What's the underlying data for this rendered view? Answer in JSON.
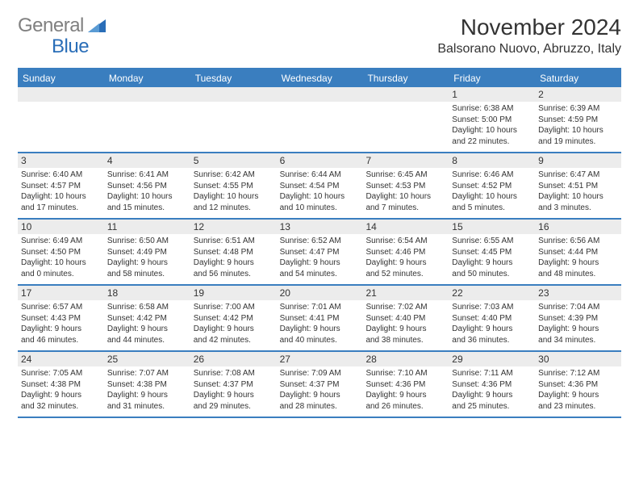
{
  "logo": {
    "part1": "General",
    "part2": "Blue",
    "color1": "#808080",
    "color2": "#2a6eb8"
  },
  "title": "November 2024",
  "location": "Balsorano Nuovo, Abruzzo, Italy",
  "colors": {
    "header_bar": "#3a7ebf",
    "header_text": "#ffffff",
    "strip": "#ececec",
    "rule": "#3a7ebf",
    "text": "#333333",
    "background": "#ffffff"
  },
  "day_names": [
    "Sunday",
    "Monday",
    "Tuesday",
    "Wednesday",
    "Thursday",
    "Friday",
    "Saturday"
  ],
  "weeks": [
    [
      null,
      null,
      null,
      null,
      null,
      {
        "num": "1",
        "sunrise": "Sunrise: 6:38 AM",
        "sunset": "Sunset: 5:00 PM",
        "day1": "Daylight: 10 hours",
        "day2": "and 22 minutes."
      },
      {
        "num": "2",
        "sunrise": "Sunrise: 6:39 AM",
        "sunset": "Sunset: 4:59 PM",
        "day1": "Daylight: 10 hours",
        "day2": "and 19 minutes."
      }
    ],
    [
      {
        "num": "3",
        "sunrise": "Sunrise: 6:40 AM",
        "sunset": "Sunset: 4:57 PM",
        "day1": "Daylight: 10 hours",
        "day2": "and 17 minutes."
      },
      {
        "num": "4",
        "sunrise": "Sunrise: 6:41 AM",
        "sunset": "Sunset: 4:56 PM",
        "day1": "Daylight: 10 hours",
        "day2": "and 15 minutes."
      },
      {
        "num": "5",
        "sunrise": "Sunrise: 6:42 AM",
        "sunset": "Sunset: 4:55 PM",
        "day1": "Daylight: 10 hours",
        "day2": "and 12 minutes."
      },
      {
        "num": "6",
        "sunrise": "Sunrise: 6:44 AM",
        "sunset": "Sunset: 4:54 PM",
        "day1": "Daylight: 10 hours",
        "day2": "and 10 minutes."
      },
      {
        "num": "7",
        "sunrise": "Sunrise: 6:45 AM",
        "sunset": "Sunset: 4:53 PM",
        "day1": "Daylight: 10 hours",
        "day2": "and 7 minutes."
      },
      {
        "num": "8",
        "sunrise": "Sunrise: 6:46 AM",
        "sunset": "Sunset: 4:52 PM",
        "day1": "Daylight: 10 hours",
        "day2": "and 5 minutes."
      },
      {
        "num": "9",
        "sunrise": "Sunrise: 6:47 AM",
        "sunset": "Sunset: 4:51 PM",
        "day1": "Daylight: 10 hours",
        "day2": "and 3 minutes."
      }
    ],
    [
      {
        "num": "10",
        "sunrise": "Sunrise: 6:49 AM",
        "sunset": "Sunset: 4:50 PM",
        "day1": "Daylight: 10 hours",
        "day2": "and 0 minutes."
      },
      {
        "num": "11",
        "sunrise": "Sunrise: 6:50 AM",
        "sunset": "Sunset: 4:49 PM",
        "day1": "Daylight: 9 hours",
        "day2": "and 58 minutes."
      },
      {
        "num": "12",
        "sunrise": "Sunrise: 6:51 AM",
        "sunset": "Sunset: 4:48 PM",
        "day1": "Daylight: 9 hours",
        "day2": "and 56 minutes."
      },
      {
        "num": "13",
        "sunrise": "Sunrise: 6:52 AM",
        "sunset": "Sunset: 4:47 PM",
        "day1": "Daylight: 9 hours",
        "day2": "and 54 minutes."
      },
      {
        "num": "14",
        "sunrise": "Sunrise: 6:54 AM",
        "sunset": "Sunset: 4:46 PM",
        "day1": "Daylight: 9 hours",
        "day2": "and 52 minutes."
      },
      {
        "num": "15",
        "sunrise": "Sunrise: 6:55 AM",
        "sunset": "Sunset: 4:45 PM",
        "day1": "Daylight: 9 hours",
        "day2": "and 50 minutes."
      },
      {
        "num": "16",
        "sunrise": "Sunrise: 6:56 AM",
        "sunset": "Sunset: 4:44 PM",
        "day1": "Daylight: 9 hours",
        "day2": "and 48 minutes."
      }
    ],
    [
      {
        "num": "17",
        "sunrise": "Sunrise: 6:57 AM",
        "sunset": "Sunset: 4:43 PM",
        "day1": "Daylight: 9 hours",
        "day2": "and 46 minutes."
      },
      {
        "num": "18",
        "sunrise": "Sunrise: 6:58 AM",
        "sunset": "Sunset: 4:42 PM",
        "day1": "Daylight: 9 hours",
        "day2": "and 44 minutes."
      },
      {
        "num": "19",
        "sunrise": "Sunrise: 7:00 AM",
        "sunset": "Sunset: 4:42 PM",
        "day1": "Daylight: 9 hours",
        "day2": "and 42 minutes."
      },
      {
        "num": "20",
        "sunrise": "Sunrise: 7:01 AM",
        "sunset": "Sunset: 4:41 PM",
        "day1": "Daylight: 9 hours",
        "day2": "and 40 minutes."
      },
      {
        "num": "21",
        "sunrise": "Sunrise: 7:02 AM",
        "sunset": "Sunset: 4:40 PM",
        "day1": "Daylight: 9 hours",
        "day2": "and 38 minutes."
      },
      {
        "num": "22",
        "sunrise": "Sunrise: 7:03 AM",
        "sunset": "Sunset: 4:40 PM",
        "day1": "Daylight: 9 hours",
        "day2": "and 36 minutes."
      },
      {
        "num": "23",
        "sunrise": "Sunrise: 7:04 AM",
        "sunset": "Sunset: 4:39 PM",
        "day1": "Daylight: 9 hours",
        "day2": "and 34 minutes."
      }
    ],
    [
      {
        "num": "24",
        "sunrise": "Sunrise: 7:05 AM",
        "sunset": "Sunset: 4:38 PM",
        "day1": "Daylight: 9 hours",
        "day2": "and 32 minutes."
      },
      {
        "num": "25",
        "sunrise": "Sunrise: 7:07 AM",
        "sunset": "Sunset: 4:38 PM",
        "day1": "Daylight: 9 hours",
        "day2": "and 31 minutes."
      },
      {
        "num": "26",
        "sunrise": "Sunrise: 7:08 AM",
        "sunset": "Sunset: 4:37 PM",
        "day1": "Daylight: 9 hours",
        "day2": "and 29 minutes."
      },
      {
        "num": "27",
        "sunrise": "Sunrise: 7:09 AM",
        "sunset": "Sunset: 4:37 PM",
        "day1": "Daylight: 9 hours",
        "day2": "and 28 minutes."
      },
      {
        "num": "28",
        "sunrise": "Sunrise: 7:10 AM",
        "sunset": "Sunset: 4:36 PM",
        "day1": "Daylight: 9 hours",
        "day2": "and 26 minutes."
      },
      {
        "num": "29",
        "sunrise": "Sunrise: 7:11 AM",
        "sunset": "Sunset: 4:36 PM",
        "day1": "Daylight: 9 hours",
        "day2": "and 25 minutes."
      },
      {
        "num": "30",
        "sunrise": "Sunrise: 7:12 AM",
        "sunset": "Sunset: 4:36 PM",
        "day1": "Daylight: 9 hours",
        "day2": "and 23 minutes."
      }
    ]
  ]
}
